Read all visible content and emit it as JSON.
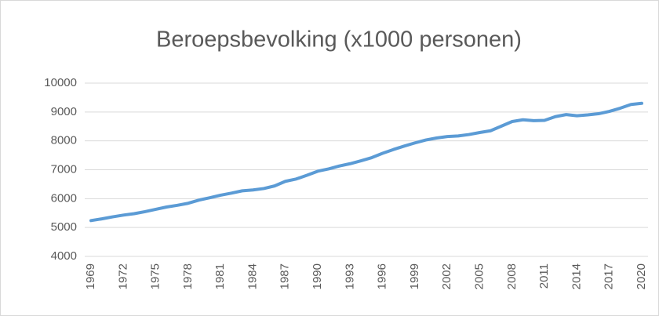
{
  "chart_data": {
    "type": "line",
    "title": "Beroepsbevolking (x1000 personen)",
    "x": [
      1969,
      1970,
      1971,
      1972,
      1973,
      1974,
      1975,
      1976,
      1977,
      1978,
      1979,
      1980,
      1981,
      1982,
      1983,
      1984,
      1985,
      1986,
      1987,
      1988,
      1989,
      1990,
      1991,
      1992,
      1993,
      1994,
      1995,
      1996,
      1997,
      1998,
      1999,
      2000,
      2001,
      2002,
      2003,
      2004,
      2005,
      2006,
      2007,
      2008,
      2009,
      2010,
      2011,
      2012,
      2013,
      2014,
      2015,
      2016,
      2017,
      2018,
      2019,
      2020
    ],
    "series": [
      {
        "name": "Beroepsbevolking",
        "color": "#5b9bd5",
        "values": [
          5240,
          5300,
          5370,
          5430,
          5480,
          5550,
          5630,
          5710,
          5770,
          5840,
          5950,
          6030,
          6120,
          6190,
          6270,
          6300,
          6350,
          6440,
          6600,
          6680,
          6810,
          6950,
          7030,
          7130,
          7210,
          7310,
          7420,
          7570,
          7700,
          7820,
          7930,
          8030,
          8100,
          8150,
          8170,
          8220,
          8290,
          8350,
          8510,
          8670,
          8730,
          8700,
          8710,
          8840,
          8910,
          8870,
          8900,
          8940,
          9020,
          9130,
          9260,
          9300
        ]
      }
    ],
    "xlim": [
      1969,
      2020
    ],
    "xticks": [
      1969,
      1972,
      1975,
      1978,
      1981,
      1984,
      1987,
      1990,
      1993,
      1996,
      1999,
      2002,
      2005,
      2008,
      2011,
      2014,
      2017,
      2020
    ],
    "ylim": [
      4000,
      10000
    ],
    "yticks": [
      4000,
      5000,
      6000,
      7000,
      8000,
      9000,
      10000
    ],
    "grid": true
  }
}
